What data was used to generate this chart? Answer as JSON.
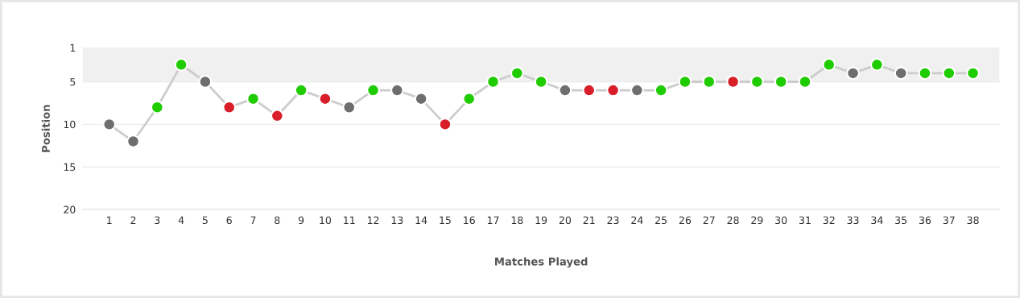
{
  "chart_data": {
    "type": "line",
    "xlabel": "Matches Played",
    "ylabel": "Position",
    "categories": [
      "1",
      "2",
      "3",
      "4",
      "5",
      "6",
      "7",
      "8",
      "9",
      "10",
      "11",
      "12",
      "13",
      "14",
      "15",
      "16",
      "17",
      "18",
      "19",
      "20",
      "21",
      "23",
      "24",
      "25",
      "26",
      "27",
      "28",
      "29",
      "30",
      "31",
      "32",
      "33",
      "34",
      "35",
      "36",
      "37",
      "38"
    ],
    "series": [
      {
        "color": "#cccccc",
        "values": [
          10,
          12,
          8,
          3,
          5,
          8,
          7,
          9,
          6,
          7,
          8,
          6,
          6,
          7,
          10,
          7,
          5,
          4,
          5,
          6,
          6,
          6,
          6,
          6,
          5,
          5,
          5,
          5,
          5,
          5,
          3,
          4,
          3,
          4,
          4,
          4,
          4
        ],
        "colors": [
          "#6e6e6e",
          "#6e6e6e",
          "#1ecc00",
          "#1ecc00",
          "#6e6e6e",
          "#d81e28",
          "#1ecc00",
          "#d81e28",
          "#1ecc00",
          "#d81e28",
          "#6e6e6e",
          "#1ecc00",
          "#6e6e6e",
          "#6e6e6e",
          "#d81e28",
          "#1ecc00",
          "#1ecc00",
          "#1ecc00",
          "#1ecc00",
          "#6e6e6e",
          "#d81e28",
          "#d81e28",
          "#6e6e6e",
          "#1ecc00",
          "#1ecc00",
          "#1ecc00",
          "#d81e28",
          "#1ecc00",
          "#1ecc00",
          "#1ecc00",
          "#1ecc00",
          "#6e6e6e",
          "#1ecc00",
          "#6e6e6e",
          "#1ecc00",
          "#1ecc00",
          "#1ecc00"
        ]
      }
    ],
    "ylim": [
      20,
      1
    ],
    "yticks": [
      1,
      5,
      10,
      15,
      20
    ],
    "grid": "y",
    "marker": "circle",
    "line_style": "solid",
    "bands": [
      {
        "axis": "y",
        "from": 1,
        "to": 5,
        "color": "#f0f0f0"
      }
    ]
  }
}
